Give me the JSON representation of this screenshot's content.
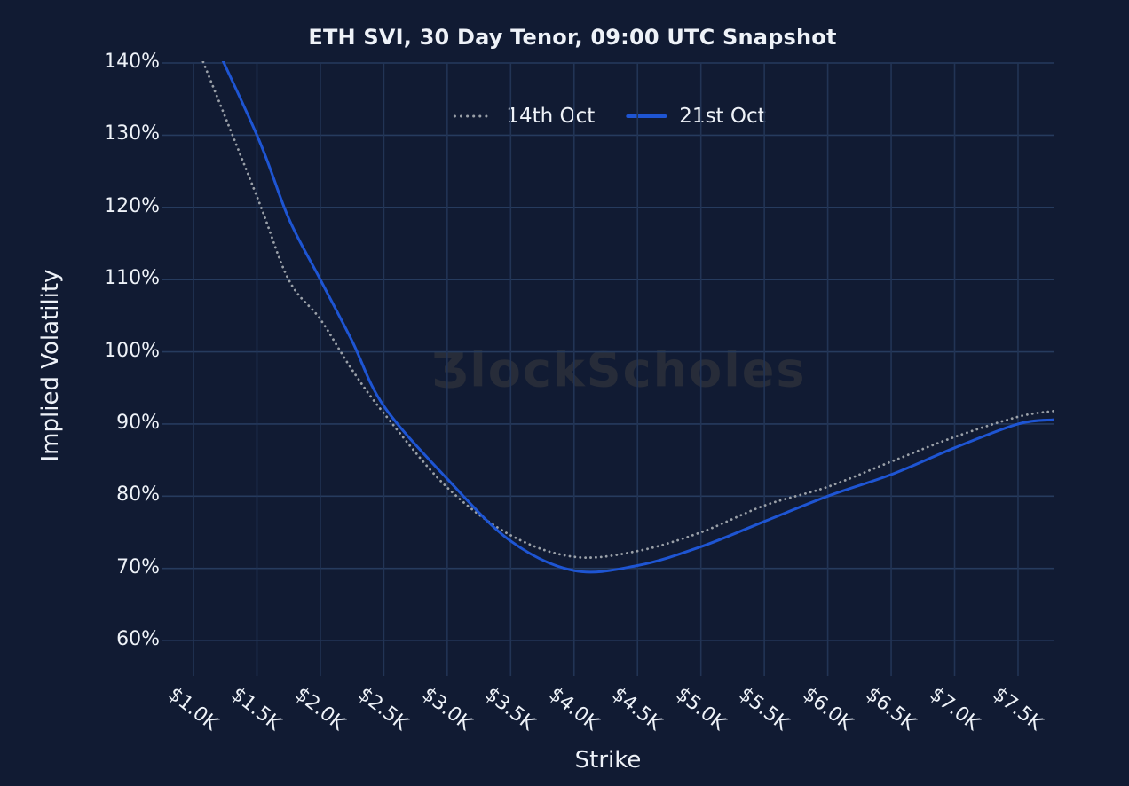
{
  "watermark": {
    "brand": "BlockScholes",
    "display_text": "ƷlockScholes"
  },
  "colors": {
    "background": "#111b33",
    "grid_horizontal": "#263b5e",
    "grid_vertical": "#223455",
    "text": "#eef2f8",
    "series_14th_oct": "#9aa0a8",
    "series_21st_oct": "#1e55d3",
    "watermark": "#272c39"
  },
  "chart_data": {
    "type": "line",
    "title": "ETH SVI, 30 Day Tenor, 09:00 UTC Snapshot",
    "xlabel": "Strike",
    "ylabel": "Implied Volatility",
    "x_unit": "USD (thousands)",
    "y_unit": "percent",
    "grid": true,
    "legend_position": "top-center",
    "xlim": [
      0.755,
      7.78
    ],
    "ylim": [
      55.1,
      140
    ],
    "x_tick_values": [
      1.0,
      1.5,
      2.0,
      2.5,
      3.0,
      3.5,
      4.0,
      4.5,
      5.0,
      5.5,
      6.0,
      6.5,
      7.0,
      7.5
    ],
    "x_tick_labels": [
      "$1.0K",
      "$1.5K",
      "$2.0K",
      "$2.5K",
      "$3.0K",
      "$3.5K",
      "$4.0K",
      "$4.5K",
      "$5.0K",
      "$5.5K",
      "$6.0K",
      "$6.5K",
      "$7.0K",
      "$7.5K"
    ],
    "y_tick_values": [
      60,
      70,
      80,
      90,
      100,
      110,
      120,
      130,
      140
    ],
    "y_tick_labels": [
      "60%",
      "70%",
      "80%",
      "90%",
      "100%",
      "110%",
      "120%",
      "130%",
      "140%"
    ],
    "series": [
      {
        "name": "14th Oct",
        "line_style": "dotted",
        "color": "#9aa0a8",
        "x": [
          1.0,
          1.5,
          1.75,
          2.0,
          2.25,
          2.5,
          3.0,
          3.5,
          4.0,
          4.5,
          5.0,
          5.5,
          6.0,
          6.5,
          7.0,
          7.5,
          7.78
        ],
        "y_pct": [
          143.5,
          121.5,
          110.0,
          104.5,
          97.5,
          91.5,
          81.2,
          74.6,
          71.6,
          72.4,
          75.0,
          78.7,
          81.3,
          84.8,
          88.2,
          91.0,
          91.8
        ]
      },
      {
        "name": "21st Oct",
        "line_style": "solid",
        "color": "#1e55d3",
        "x": [
          1.0,
          1.5,
          1.75,
          2.0,
          2.25,
          2.5,
          3.0,
          3.5,
          4.0,
          4.5,
          5.0,
          5.5,
          6.0,
          6.5,
          7.0,
          7.5,
          7.78
        ],
        "y_pct": [
          149.0,
          130.0,
          118.5,
          110.0,
          101.5,
          92.5,
          82.4,
          73.8,
          69.7,
          70.4,
          73.0,
          76.5,
          80.0,
          83.0,
          86.7,
          90.0,
          90.6
        ]
      }
    ]
  }
}
